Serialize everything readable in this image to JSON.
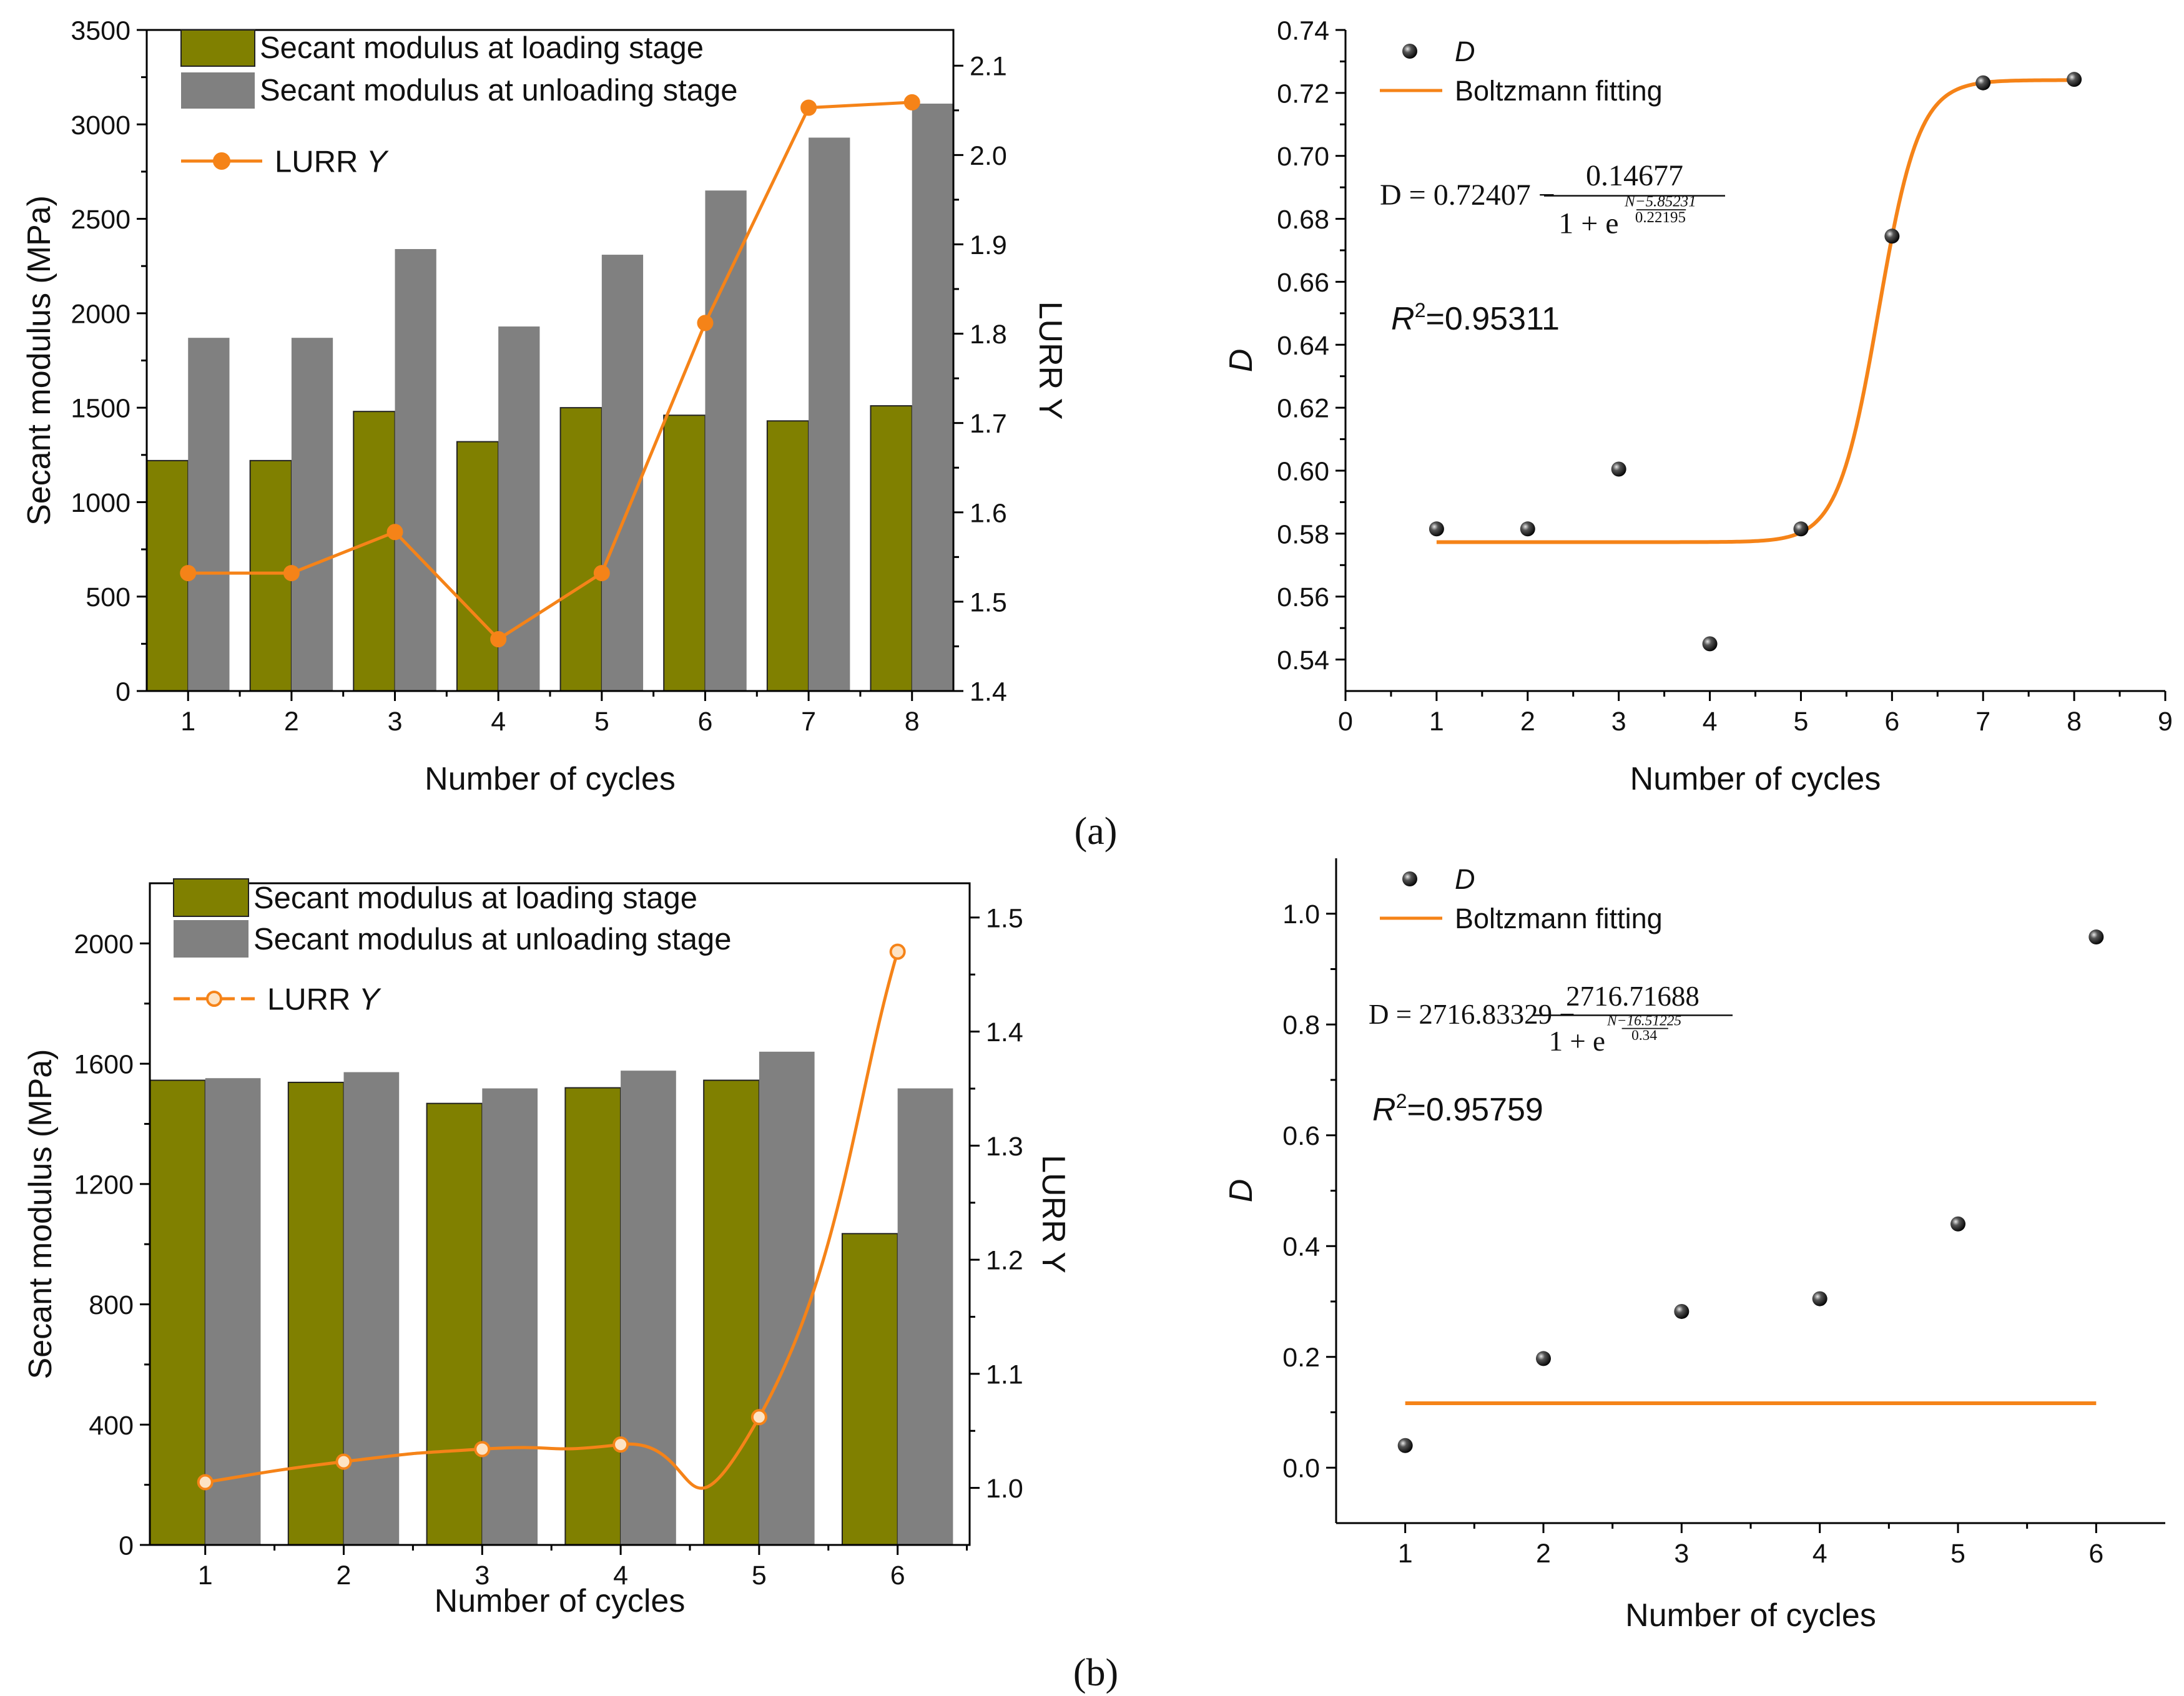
{
  "colors": {
    "loading": "#808000",
    "unloading": "#808080",
    "orange": "#F58318",
    "axis": "#000000"
  },
  "panel_labels": [
    "(a)",
    "(b)"
  ],
  "chart_data": [
    {
      "id": "a_left",
      "type": "bar",
      "xlabel": "Number of cycles",
      "ylabel": "Secant modulus (MPa)",
      "y2label": "LURR Y",
      "categories": [
        1,
        2,
        3,
        4,
        5,
        6,
        7,
        8
      ],
      "xlim": [
        0.6,
        8.4
      ],
      "ylim": [
        0,
        3500
      ],
      "yticks": [
        0,
        500,
        1000,
        1500,
        2000,
        2500,
        3000,
        3500
      ],
      "y2lim": [
        1.4,
        2.14
      ],
      "y2ticks": [
        1.4,
        1.5,
        1.6,
        1.7,
        1.8,
        1.9,
        2.0,
        2.1
      ],
      "bar_series": [
        {
          "name": "Secant modulus at loading stage",
          "color_key": "loading",
          "values": [
            1220,
            1220,
            1480,
            1320,
            1500,
            1460,
            1430,
            1510
          ]
        },
        {
          "name": "Secant modulus at unloading stage",
          "color_key": "unloading",
          "values": [
            1870,
            1870,
            2340,
            1930,
            2310,
            2650,
            2930,
            3110
          ]
        }
      ],
      "line_series": {
        "name": "LURR",
        "name_italic": "Y",
        "values": [
          1.532,
          1.532,
          1.578,
          1.458,
          1.532,
          1.812,
          2.053,
          2.059
        ],
        "smooth": false,
        "marker": "solid"
      },
      "legend_position": "top-left"
    },
    {
      "id": "a_right",
      "type": "scatter",
      "xlabel": "Number of cycles",
      "ylabel": "D",
      "xlim": [
        0,
        9
      ],
      "xticks": [
        0,
        1,
        2,
        3,
        4,
        5,
        6,
        7,
        8,
        9
      ],
      "ylim": [
        0.53,
        0.74
      ],
      "yticks": [
        0.54,
        0.56,
        0.58,
        0.6,
        0.62,
        0.64,
        0.66,
        0.68,
        0.7,
        0.72,
        0.74
      ],
      "points": {
        "x": [
          1,
          2,
          3,
          4,
          5,
          6,
          7,
          8
        ],
        "y": [
          0.5815,
          0.5815,
          0.6005,
          0.545,
          0.5815,
          0.6745,
          0.7232,
          0.7243
        ]
      },
      "fit": {
        "type": "boltzmann",
        "A2": 0.72407,
        "A2_minus_A1": 0.14677,
        "x0": 5.85231,
        "dx": 0.22195,
        "range": [
          1,
          8
        ]
      },
      "legend": {
        "points_label": "D",
        "fit_label": "Boltzmann fitting"
      },
      "equation": {
        "lhs": "D = 0.72407 −",
        "numerator": "0.14677",
        "den_base": "1 + e",
        "exp_num": "N−5.85231",
        "exp_den": "0.22195"
      },
      "r2": {
        "prefix": "R",
        "sup": "2",
        "value": "=0.95311"
      },
      "legend_position": "top-left"
    },
    {
      "id": "b_left",
      "type": "bar",
      "xlabel": "Number of cycles",
      "ylabel": "Secant modulus (MPa)",
      "y2label": "LURR Y",
      "categories": [
        1,
        2,
        3,
        4,
        5,
        6
      ],
      "xlim": [
        0.6,
        6.52
      ],
      "ylim": [
        0,
        2200
      ],
      "yticks": [
        0,
        400,
        800,
        1200,
        1600,
        2000
      ],
      "y2lim": [
        0.95,
        1.53
      ],
      "y2ticks": [
        1.0,
        1.1,
        1.2,
        1.3,
        1.4,
        1.5
      ],
      "bar_series": [
        {
          "name": "Secant modulus at loading stage",
          "color_key": "loading",
          "values": [
            1545,
            1538,
            1468,
            1520,
            1545,
            1035
          ]
        },
        {
          "name": "Secant modulus at unloading stage",
          "color_key": "unloading",
          "values": [
            1552,
            1572,
            1518,
            1577,
            1640,
            1518
          ]
        }
      ],
      "line_series": {
        "name": "LURR",
        "name_italic": "Y",
        "values": [
          1.005,
          1.023,
          1.034,
          1.038,
          1.062,
          1.47
        ],
        "smooth": true,
        "marker": "hollow"
      },
      "legend_position": "top-left"
    },
    {
      "id": "b_right",
      "type": "scatter",
      "xlabel": "Number of cycles",
      "ylabel": "D",
      "xlim": [
        0.5,
        6.5
      ],
      "xticks": [
        1,
        2,
        3,
        4,
        5,
        6
      ],
      "ylim": [
        -0.1,
        1.1
      ],
      "yticks": [
        0.0,
        0.2,
        0.4,
        0.6,
        0.8,
        1.0
      ],
      "points": {
        "x": [
          1,
          2,
          3,
          4,
          5,
          6
        ],
        "y": [
          0.04,
          0.197,
          0.282,
          0.305,
          0.44,
          0.958
        ]
      },
      "fit": {
        "type": "boltzmann",
        "A2": 2716.83329,
        "A2_minus_A1": 2716.71688,
        "x0": 16.51225,
        "dx": 0.34,
        "range": [
          1,
          6
        ]
      },
      "legend": {
        "points_label": "D",
        "fit_label": "Boltzmann fitting"
      },
      "equation": {
        "lhs": "D = 2716.83329 −",
        "numerator": "2716.71688",
        "den_base": "1 + e",
        "exp_num": "N−16.51225",
        "exp_den": "0.34"
      },
      "r2": {
        "prefix": "R",
        "sup": "2",
        "value": "=0.95759"
      },
      "legend_position": "top-left"
    }
  ]
}
